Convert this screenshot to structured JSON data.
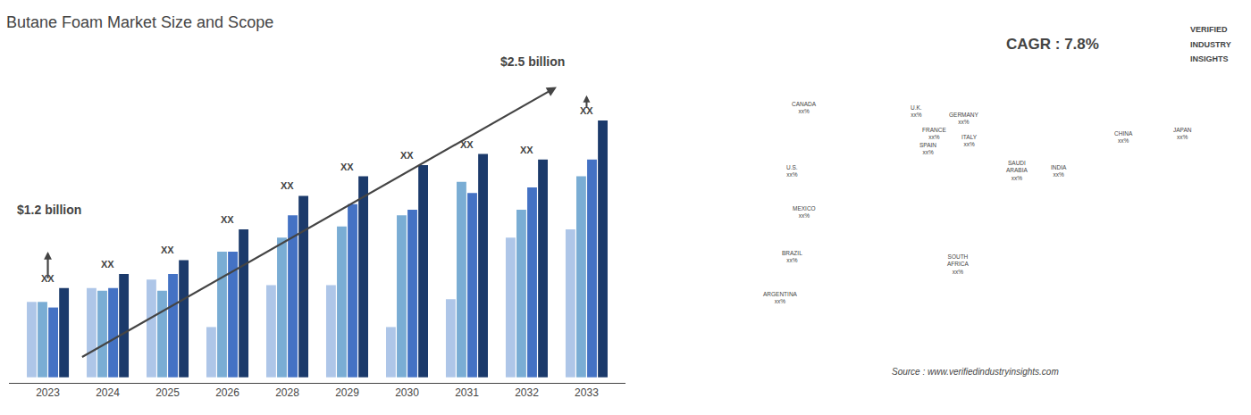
{
  "chart_data": {
    "type": "bar",
    "title": "Butane Foam Market Size and Scope",
    "categories": [
      "2023",
      "2024",
      "2025",
      "2026",
      "2028",
      "2029",
      "2030",
      "2031",
      "2032",
      "2033"
    ],
    "series": [
      {
        "color": "#aec6e8",
        "values": [
          0.27,
          0.32,
          0.35,
          0.18,
          0.33,
          0.33,
          0.18,
          0.28,
          0.5,
          0.53
        ]
      },
      {
        "color": "#7aadd4",
        "values": [
          0.27,
          0.31,
          0.31,
          0.45,
          0.5,
          0.54,
          0.58,
          0.7,
          0.6,
          0.72
        ]
      },
      {
        "color": "#4472c4",
        "values": [
          0.25,
          0.32,
          0.37,
          0.45,
          0.58,
          0.62,
          0.6,
          0.66,
          0.68,
          0.78
        ]
      },
      {
        "color": "#1b3a6b",
        "values": [
          0.32,
          0.37,
          0.42,
          0.53,
          0.65,
          0.72,
          0.76,
          0.8,
          0.78,
          0.92
        ]
      }
    ],
    "ylim": [
      -0.02,
      1.18
    ],
    "tick_labels": "x",
    "grid": false,
    "annotations": [
      {
        "text": "XX",
        "category": "2023"
      },
      {
        "text": "XX",
        "category": "2024"
      },
      {
        "text": "XX",
        "category": "2025"
      },
      {
        "text": "XX",
        "category": "2026"
      },
      {
        "text": "XX",
        "category": "2028"
      },
      {
        "text": "XX",
        "category": "2029"
      },
      {
        "text": "XX",
        "category": "2030"
      },
      {
        "text": "XX",
        "category": "2031"
      },
      {
        "text": "XX",
        "category": "2032"
      },
      {
        "text": "XX",
        "category": "2033"
      },
      {
        "text": "$1.2 billion"
      },
      {
        "text": "$2.5 billion"
      },
      {
        "text": "CAGR : 7.8%"
      },
      {
        "text": "Source : www.verifiedindustryinsights.com"
      },
      {
        "text": "VERIFIED"
      },
      {
        "text": "INDUSTRY"
      },
      {
        "text": "INSIGHTS"
      },
      {
        "text": "CANADA\nxx%"
      },
      {
        "text": "U.S.\nxx%"
      },
      {
        "text": "MEXICO\nxx%"
      },
      {
        "text": "BRAZIL\nxx%"
      },
      {
        "text": "ARGENTINA\nxx%"
      },
      {
        "text": "U.K.\nxx%"
      },
      {
        "text": "FRANCE\nxx%"
      },
      {
        "text": "GERMANY\nxx%"
      },
      {
        "text": "SPAIN\nxx%"
      },
      {
        "text": "ITALY\nxx%"
      },
      {
        "text": "SAUDI\nARABIA\nxx%"
      },
      {
        "text": "SOUTH\nAFRICA\nxx%"
      },
      {
        "text": "CHINA\nxx%"
      },
      {
        "text": "INDIA\nxx%"
      },
      {
        "text": "JAPAN\nxx%"
      }
    ]
  }
}
